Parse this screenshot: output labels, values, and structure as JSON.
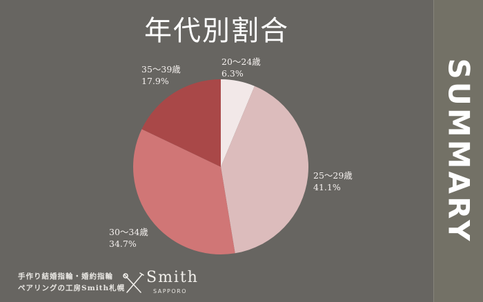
{
  "chart_data": {
    "type": "pie",
    "title": "年代別割合",
    "start": "top",
    "direction": "clockwise",
    "slices": [
      {
        "label": "20～24歳",
        "value": 6.3,
        "value_label": "6.3%",
        "color": "#f2e8e8"
      },
      {
        "label": "25～29歳",
        "value": 41.1,
        "value_label": "41.1%",
        "color": "#dcbcbc"
      },
      {
        "label": "30～34歳",
        "value": 34.7,
        "value_label": "34.7%",
        "color": "#d07676"
      },
      {
        "label": "35～39歳",
        "value": 17.9,
        "value_label": "17.9%",
        "color": "#a94848"
      }
    ]
  },
  "sidebar": {
    "label": "SUMMARY"
  },
  "footer": {
    "line1": "手作り結婚指輪・婚約指輪",
    "line2": "ペアリングの工房Smith札幌"
  },
  "logo": {
    "name": "Smith",
    "sub": "SAPPORO",
    "icon": "crossed-tools-icon"
  },
  "colors": {
    "background": "#676561",
    "sidebar": "#737166"
  }
}
